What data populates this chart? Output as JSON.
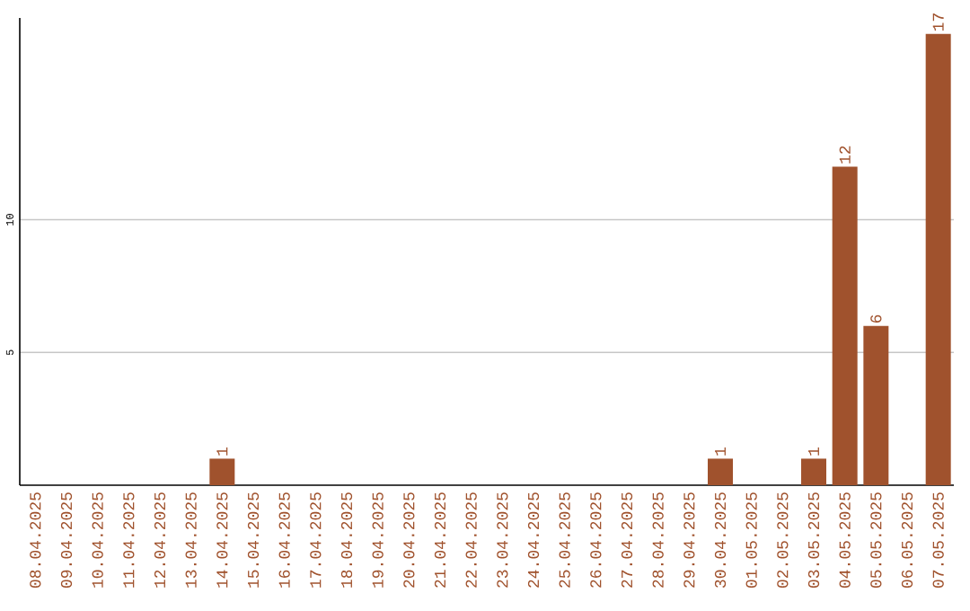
{
  "chart_data": {
    "type": "bar",
    "categories": [
      "08.04.2025",
      "09.04.2025",
      "10.04.2025",
      "11.04.2025",
      "12.04.2025",
      "13.04.2025",
      "14.04.2025",
      "15.04.2025",
      "16.04.2025",
      "17.04.2025",
      "18.04.2025",
      "19.04.2025",
      "20.04.2025",
      "21.04.2025",
      "22.04.2025",
      "23.04.2025",
      "24.04.2025",
      "25.04.2025",
      "26.04.2025",
      "27.04.2025",
      "28.04.2025",
      "29.04.2025",
      "30.04.2025",
      "01.05.2025",
      "02.05.2025",
      "03.05.2025",
      "04.05.2025",
      "05.05.2025",
      "06.05.2025",
      "07.05.2025"
    ],
    "values": [
      0,
      0,
      0,
      0,
      0,
      0,
      1,
      0,
      0,
      0,
      0,
      0,
      0,
      0,
      0,
      0,
      0,
      0,
      0,
      0,
      0,
      0,
      1,
      0,
      0,
      1,
      12,
      6,
      0,
      17
    ],
    "value_labels": [
      null,
      null,
      null,
      null,
      null,
      null,
      "1",
      null,
      null,
      null,
      null,
      null,
      null,
      null,
      null,
      null,
      null,
      null,
      null,
      null,
      null,
      null,
      "1",
      null,
      null,
      "1",
      "12",
      "6",
      null,
      "17"
    ],
    "color": "#a0522d",
    "ylim": [
      0,
      17.6
    ],
    "yticks": [
      5,
      10
    ],
    "grid": "y"
  }
}
